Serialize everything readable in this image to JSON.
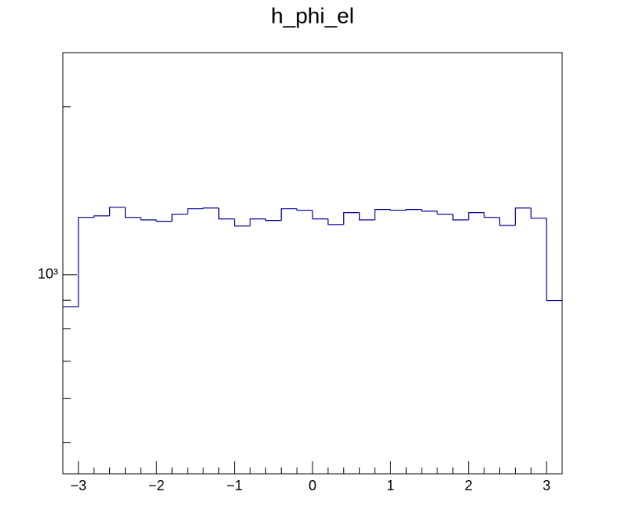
{
  "chart_data": {
    "type": "histogram",
    "title": "h_phi_el",
    "bins": [
      -3.2,
      -3.0,
      -2.8,
      -2.6,
      -2.4,
      -2.2,
      -2.0,
      -1.8,
      -1.6,
      -1.4,
      -1.2,
      -1.0,
      -0.8,
      -0.6,
      -0.4,
      -0.2,
      0.0,
      0.2,
      0.4,
      0.6,
      0.8,
      1.0,
      1.2,
      1.4,
      1.6,
      1.8,
      2.0,
      2.2,
      2.4,
      2.6,
      2.8,
      3.0,
      3.2
    ],
    "values": [
      876,
      1267,
      1275,
      1321,
      1267,
      1254,
      1247,
      1284,
      1313,
      1317,
      1259,
      1223,
      1259,
      1251,
      1313,
      1305,
      1259,
      1230,
      1292,
      1254,
      1309,
      1305,
      1309,
      1300,
      1284,
      1254,
      1292,
      1267,
      1226,
      1317,
      1263,
      899
    ],
    "color": "#000099",
    "xlim": [
      -3.2,
      3.2
    ],
    "xticks": [
      -3,
      -2,
      -1,
      0,
      1,
      2,
      3
    ],
    "xminor_ticks": [
      -3.2,
      -2.8,
      -2.6,
      -2.4,
      -2.2,
      -1.8,
      -1.6,
      -1.4,
      -1.2,
      -0.8,
      -0.6,
      -0.4,
      -0.2,
      0.2,
      0.4,
      0.6,
      0.8,
      1.2,
      1.4,
      1.6,
      1.8,
      2.2,
      2.4,
      2.6,
      2.8,
      3.2
    ],
    "ylim": [
      440,
      2500
    ],
    "log_y": true,
    "yticks": [
      {
        "value": 1000,
        "label": "10³"
      }
    ],
    "yminor_ticks": [
      500,
      600,
      700,
      800,
      900,
      2000
    ]
  }
}
